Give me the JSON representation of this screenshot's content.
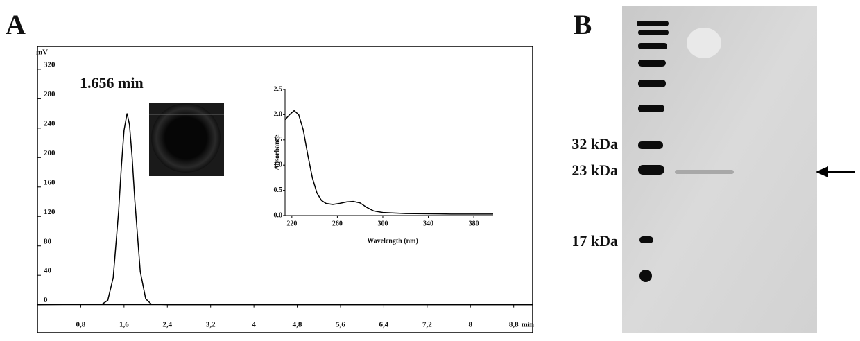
{
  "chart_data": [
    {
      "type": "line",
      "panel": "A",
      "annotation": "1.656 min",
      "ylabel": "mV",
      "xlabel": "min",
      "x": [
        0,
        1.2,
        1.3,
        1.4,
        1.5,
        1.55,
        1.6,
        1.656,
        1.7,
        1.75,
        1.8,
        1.9,
        2.0,
        2.1,
        2.4,
        9.15
      ],
      "series": [
        {
          "color": "#000000",
          "values": [
            0,
            1,
            6,
            37,
            127,
            187,
            237,
            260,
            245,
            200,
            141,
            45,
            8,
            1,
            0,
            0
          ]
        }
      ],
      "xlim": [
        0,
        9.15
      ],
      "ylim": [
        -38,
        351
      ],
      "xticks": [
        {
          "value": 0.8,
          "label": "0,8"
        },
        {
          "value": 1.6,
          "label": "1,6"
        },
        {
          "value": 2.4,
          "label": "2,4"
        },
        {
          "value": 3.2,
          "label": "3,2"
        },
        4,
        {
          "value": 4.8,
          "label": "4,8"
        },
        {
          "value": 5.6,
          "label": "5,6"
        },
        {
          "value": 6.4,
          "label": "6,4"
        },
        {
          "value": 7.2,
          "label": "7,2"
        },
        8,
        {
          "value": 8.8,
          "label": "8,8"
        }
      ],
      "yticks": [
        0,
        40,
        80,
        120,
        160,
        200,
        240,
        280,
        320
      ]
    },
    {
      "type": "line",
      "xlabel": "Wavelength (nm)",
      "ylabel": "Absorbance",
      "x": [
        214,
        218,
        222,
        226,
        230,
        234,
        238,
        242,
        246,
        250,
        256,
        262,
        268,
        274,
        280,
        286,
        292,
        300,
        320,
        360,
        397
      ],
      "series": [
        {
          "color": "#000000",
          "values": [
            1.9,
            2.0,
            2.08,
            2.0,
            1.7,
            1.2,
            0.75,
            0.45,
            0.3,
            0.24,
            0.22,
            0.24,
            0.27,
            0.28,
            0.25,
            0.16,
            0.09,
            0.06,
            0.04,
            0.03,
            0.03
          ]
        }
      ],
      "xlim": [
        214,
        397
      ],
      "ylim": [
        0,
        2.5
      ],
      "xticks": [
        220,
        260,
        300,
        340,
        380
      ],
      "yticks": [
        {
          "value": 0,
          "label": "0.0"
        },
        0.5,
        {
          "value": 1,
          "label": "1.0"
        },
        1.5,
        {
          "value": 2,
          "label": "2.0"
        },
        2.5
      ]
    }
  ],
  "gel": {
    "panel": "B",
    "markers": [
      "32 kDa",
      "23 kDa",
      "17 kDa"
    ]
  }
}
